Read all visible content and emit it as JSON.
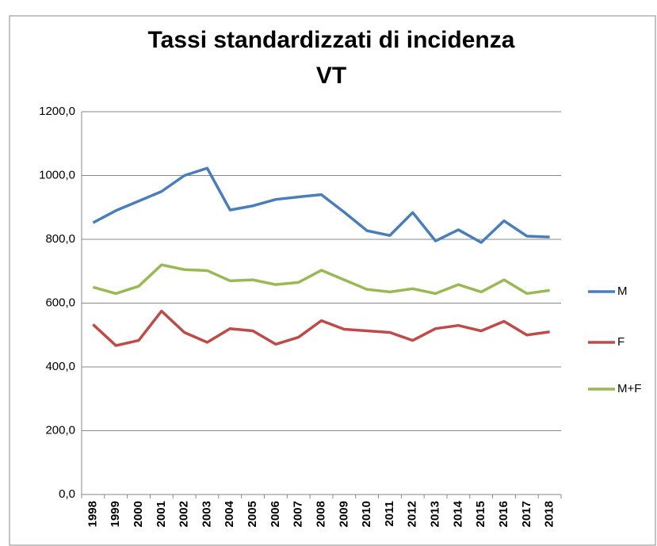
{
  "chart_data": {
    "type": "line",
    "title": [
      "Tassi standardizzati di incidenza",
      "VT"
    ],
    "categories": [
      "1998",
      "1999",
      "2000",
      "2001",
      "2002",
      "2003",
      "2004",
      "2005",
      "2006",
      "2007",
      "2008",
      "2009",
      "2010",
      "2011",
      "2012",
      "2013",
      "2014",
      "2015",
      "2016",
      "2017",
      "2018"
    ],
    "series": [
      {
        "name": "M",
        "color": "#4a7ebb",
        "values": [
          852,
          890,
          920,
          950,
          1000,
          1023,
          892,
          905,
          925,
          933,
          940,
          885,
          827,
          812,
          884,
          795,
          830,
          790,
          858,
          810,
          807
        ]
      },
      {
        "name": "F",
        "color": "#be4b48",
        "values": [
          533,
          467,
          483,
          575,
          508,
          477,
          520,
          513,
          471,
          493,
          545,
          518,
          513,
          508,
          483,
          520,
          530,
          513,
          543,
          500,
          510
        ]
      },
      {
        "name": "M+F",
        "color": "#98b954",
        "values": [
          650,
          630,
          653,
          720,
          705,
          702,
          670,
          673,
          658,
          665,
          703,
          673,
          643,
          635,
          645,
          630,
          658,
          635,
          673,
          630,
          640
        ]
      }
    ],
    "ylim": [
      0,
      1200
    ],
    "yticks": [
      {
        "value": 0,
        "label": "0,0"
      },
      {
        "value": 200,
        "label": "200,0"
      },
      {
        "value": 400,
        "label": "400,0"
      },
      {
        "value": 600,
        "label": "600,0"
      },
      {
        "value": 800,
        "label": "800,0"
      },
      {
        "value": 1000,
        "label": "1000,0"
      },
      {
        "value": 1200,
        "label": "1200,0"
      }
    ],
    "grid": true,
    "legend": "right"
  }
}
